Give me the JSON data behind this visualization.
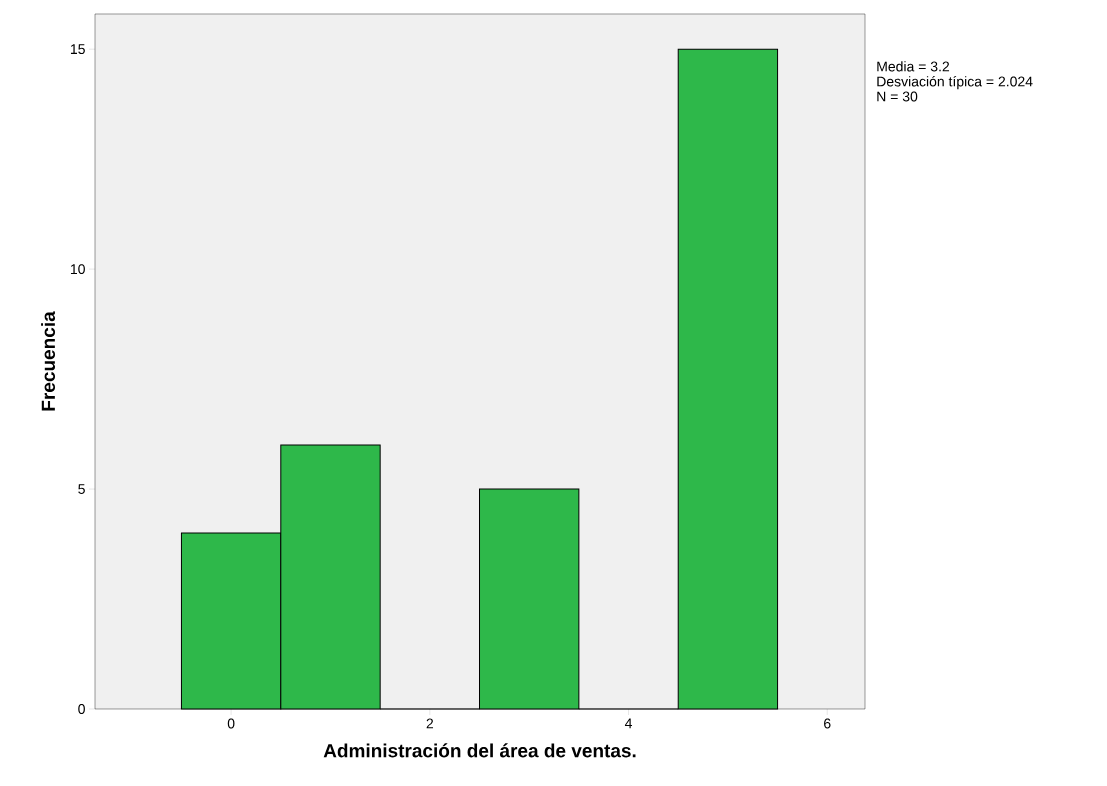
{
  "chart_data": {
    "type": "histogram",
    "xlabel": "Administración del área de ventas.",
    "ylabel": "Frecuencia",
    "bins": [
      -0.5,
      0.5,
      1.5,
      2.5,
      3.5,
      4.5,
      5.5
    ],
    "values": [
      4,
      6,
      0,
      5,
      0,
      15
    ],
    "color": "#2eb84a",
    "xlim": [
      -1.37,
      6.38
    ],
    "ylim": [
      0,
      15.8
    ],
    "xticks": [
      0,
      2,
      4,
      6
    ],
    "yticks": [
      0,
      5,
      10,
      15
    ],
    "grid": false,
    "annotations": [
      "Media = 3.2",
      "Desviación típica = 2.024",
      "N = 30"
    ]
  }
}
